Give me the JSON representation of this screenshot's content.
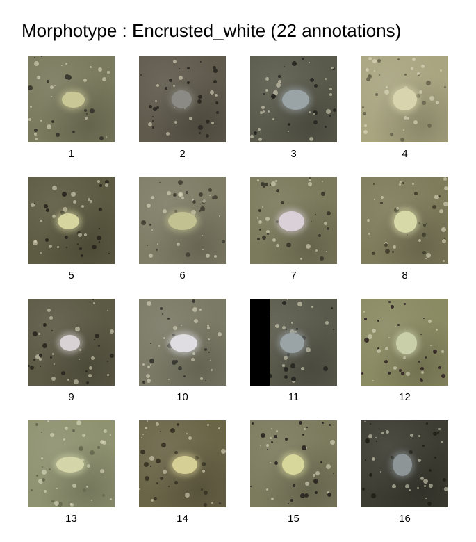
{
  "title": "Morphotype : Encrusted_white (22 annotations)",
  "tiles": [
    {
      "label": "1",
      "bg": "#7a7a5e",
      "blob": "#c9c796",
      "dark": "#3b3a30"
    },
    {
      "label": "2",
      "bg": "#5f5a4c",
      "blob": "#8c8a84",
      "dark": "#2e2b25"
    },
    {
      "label": "3",
      "bg": "#5a5a4c",
      "blob": "#9aa3a6",
      "dark": "#2a2a24"
    },
    {
      "label": "4",
      "bg": "#a9a581",
      "blob": "#d8d4ad",
      "dark": "#6e6a52"
    },
    {
      "label": "5",
      "bg": "#5e5b43",
      "blob": "#d6d5a0",
      "dark": "#2c2a20"
    },
    {
      "label": "6",
      "bg": "#7f7d66",
      "blob": "#c2c191",
      "dark": "#474538"
    },
    {
      "label": "7",
      "bg": "#7c7a5c",
      "blob": "#d9d0d8",
      "dark": "#3e3c2e"
    },
    {
      "label": "8",
      "bg": "#7f7c5c",
      "blob": "#d8d9a8",
      "dark": "#45432f"
    },
    {
      "label": "9",
      "bg": "#5c5a45",
      "blob": "#d8d2d4",
      "dark": "#2d2b22"
    },
    {
      "label": "10",
      "bg": "#7b7a66",
      "blob": "#dfdde2",
      "dark": "#3c3b33"
    },
    {
      "label": "11",
      "bg": "#5a5a4c",
      "blob": "#9aa3a6",
      "dark": "#2a2a24",
      "black_bar": true
    },
    {
      "label": "12",
      "bg": "#8a8a63",
      "blob": "#c9cfa8",
      "dark": "#3a2e2a"
    },
    {
      "label": "13",
      "bg": "#8e9270",
      "blob": "#d4d5a8",
      "dark": "#6a6c52"
    },
    {
      "label": "14",
      "bg": "#6b6548",
      "blob": "#d6cf95",
      "dark": "#3b3626"
    },
    {
      "label": "15",
      "bg": "#7c7b5e",
      "blob": "#d8d79b",
      "dark": "#2e2c25"
    },
    {
      "label": "16",
      "bg": "#3d3d33",
      "blob": "#8d9596",
      "dark": "#222219"
    }
  ]
}
